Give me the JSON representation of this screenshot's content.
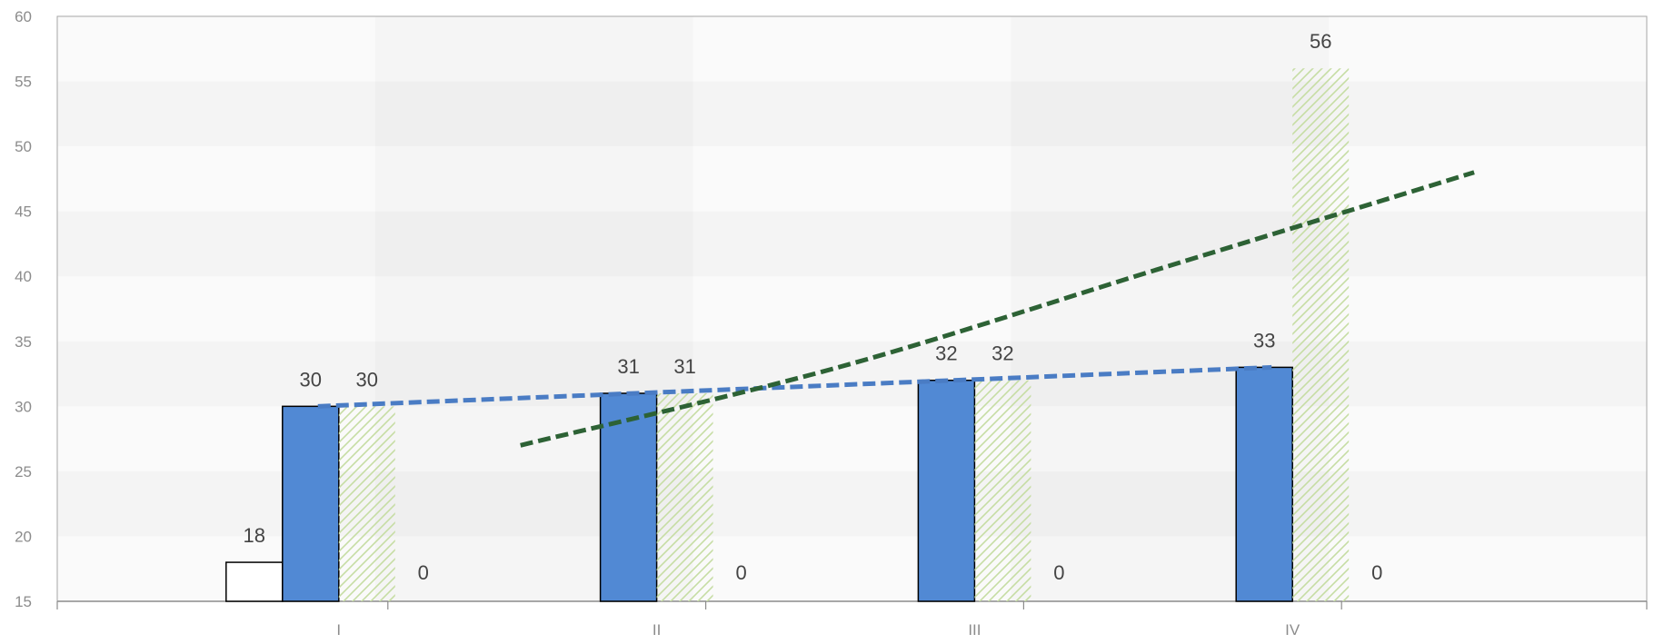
{
  "chart_data": {
    "type": "bar",
    "title": "",
    "xlabel": "",
    "ylabel": "",
    "categories": [
      "I",
      "II",
      "III",
      "IV"
    ],
    "ylim": [
      15,
      60
    ],
    "yticks": [
      15,
      20,
      25,
      30,
      35,
      40,
      45,
      50,
      55,
      60
    ],
    "grid": true,
    "legend": "none",
    "series": [
      {
        "style": "outline",
        "color": "#000000",
        "values": [
          18,
          null,
          null,
          null
        ]
      },
      {
        "style": "solid",
        "color": "#5189d4",
        "values": [
          30,
          31,
          32,
          33
        ]
      },
      {
        "style": "hatched",
        "color": "#c6dda4",
        "values": [
          30,
          31,
          32,
          56
        ]
      },
      {
        "style": "label-only",
        "values": [
          0,
          0,
          0,
          0
        ]
      }
    ],
    "trendlines": [
      {
        "color": "#4a7cc4",
        "dash": true,
        "type": "linear",
        "points": [
          [
            0,
            30
          ],
          [
            3,
            33
          ]
        ]
      },
      {
        "color": "#2d6235",
        "dash": true,
        "type": "polynomial",
        "points": [
          [
            0.5,
            27
          ],
          [
            1.5,
            33
          ],
          [
            2.5,
            40.5
          ],
          [
            3.5,
            48
          ]
        ]
      }
    ]
  }
}
